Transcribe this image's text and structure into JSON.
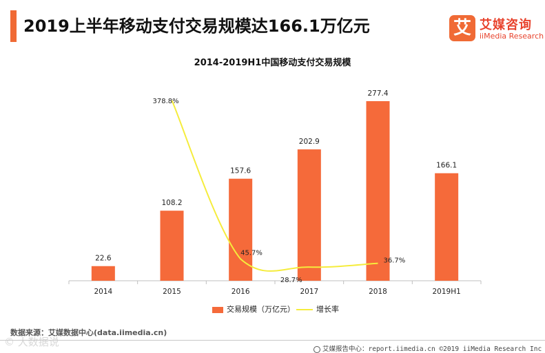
{
  "header": {
    "title": "2019上半年移动支付交易规模达166.1万亿元",
    "logo_mark": "艾",
    "logo_cn": "艾媒咨询",
    "logo_en": "iiMedia Research"
  },
  "chart_data": {
    "type": "bar+line",
    "title": "2014-2019H1中国移动支付交易规模",
    "categories": [
      "2014",
      "2015",
      "2016",
      "2017",
      "2018",
      "2019H1"
    ],
    "series": [
      {
        "name": "交易规模（万亿元）",
        "type": "bar",
        "color": "#f56a3a",
        "values": [
          22.6,
          108.2,
          157.6,
          202.9,
          277.4,
          166.1
        ],
        "labels": [
          "22.6",
          "108.2",
          "157.6",
          "202.9",
          "277.4",
          "166.1"
        ]
      },
      {
        "name": "增长率",
        "type": "line",
        "color": "#f5ec3c",
        "values": [
          null,
          378.8,
          45.7,
          28.7,
          36.7,
          null
        ],
        "labels": [
          "",
          "378.8%",
          "45.7%",
          "28.7%",
          "36.7%",
          ""
        ]
      }
    ],
    "bar_ylim": [
      0,
      300
    ],
    "line_ylim": [
      0,
      420
    ],
    "legend_position": "bottom"
  },
  "legend": {
    "bar_label": "交易规模（万亿元）",
    "line_label": "增长率"
  },
  "source": "数据来源：艾媒数据中心(data.iimedia.cn)",
  "footer": "艾媒报告中心：report.iimedia.cn  ©2019  iiMedia Research  Inc",
  "watermark": "© 大数据说"
}
